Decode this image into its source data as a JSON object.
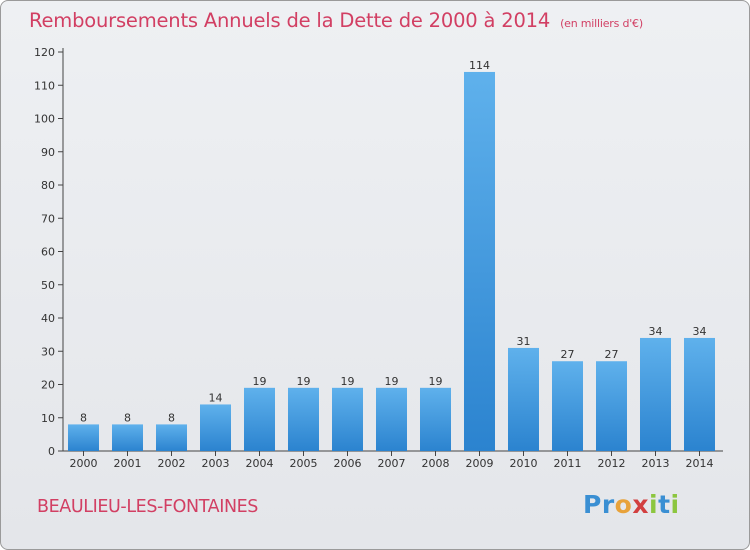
{
  "header": {
    "title": "Remboursements Annuels de la Dette de 2000 à 2014",
    "subtitle": "(en milliers d'€)"
  },
  "footer": {
    "commune": "BEAULIEU-LES-FONTAINES",
    "logo": {
      "letters": [
        "P",
        "r",
        "o",
        "x",
        "i",
        "t",
        "i"
      ],
      "colors": [
        "#3a8fd3",
        "#3a8fd3",
        "#e8a23a",
        "#d23f3f",
        "#8cc63f",
        "#3a8fd3",
        "#8cc63f"
      ]
    }
  },
  "colors": {
    "bar_light": "#5fb1ec",
    "bar_dark": "#2b83cf",
    "accent": "#d23f63",
    "axis": "#444444"
  },
  "chart_data": {
    "type": "bar",
    "categories": [
      "2000",
      "2001",
      "2002",
      "2003",
      "2004",
      "2005",
      "2006",
      "2007",
      "2008",
      "2009",
      "2010",
      "2011",
      "2012",
      "2013",
      "2014"
    ],
    "values": [
      8,
      8,
      8,
      14,
      19,
      19,
      19,
      19,
      19,
      114,
      31,
      27,
      27,
      34,
      34
    ],
    "yticks": [
      0,
      10,
      20,
      30,
      40,
      50,
      60,
      70,
      80,
      90,
      100,
      110,
      120
    ],
    "ylim": [
      0,
      120
    ],
    "xlabel": "",
    "ylabel": "",
    "grid": false,
    "data_labels": true
  }
}
